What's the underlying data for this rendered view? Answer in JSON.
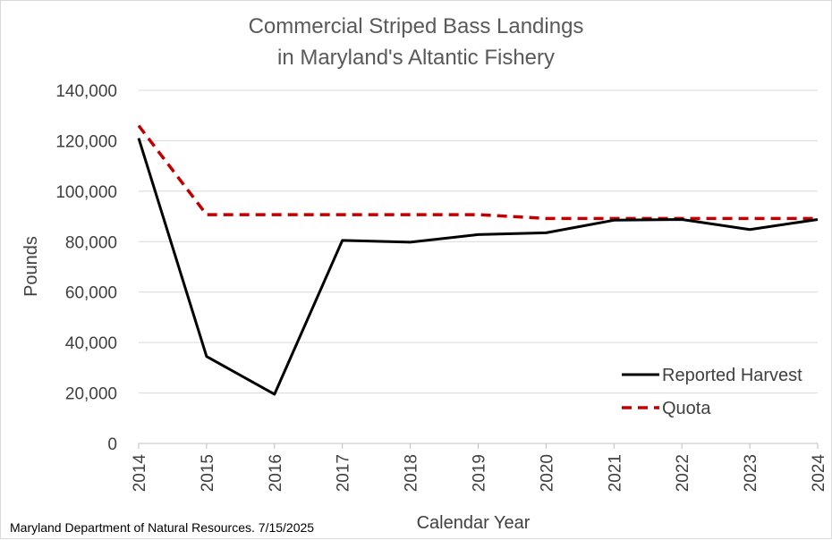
{
  "chart_data": {
    "type": "line",
    "title": "Commercial Striped Bass Landings",
    "subtitle": "in Maryland's Altantic Fishery",
    "xlabel": "Calendar Year",
    "ylabel": "Pounds",
    "x": [
      "2014",
      "2015",
      "2016",
      "2017",
      "2018",
      "2019",
      "2020",
      "2021",
      "2022",
      "2023",
      "2024"
    ],
    "ylim": [
      0,
      140000
    ],
    "yticks": [
      0,
      20000,
      40000,
      60000,
      80000,
      100000,
      120000,
      140000
    ],
    "ytick_labels": [
      "0",
      "20,000",
      "40,000",
      "60,000",
      "80,000",
      "100,000",
      "120,000",
      "140,000"
    ],
    "grid": true,
    "legend_position": "bottom-right",
    "series": [
      {
        "name": "Reported Harvest",
        "style": "solid",
        "color": "#000000",
        "values": [
          121000,
          34500,
          19500,
          80500,
          79800,
          82800,
          83500,
          88500,
          88800,
          84800,
          88800
        ]
      },
      {
        "name": "Quota",
        "style": "dashed",
        "color": "#c00000",
        "values": [
          126000,
          90700,
          90700,
          90700,
          90700,
          90700,
          89200,
          89200,
          89200,
          89200,
          89200
        ]
      }
    ],
    "source_note": "Maryland Department of Natural Resources. 7/15/2025"
  }
}
